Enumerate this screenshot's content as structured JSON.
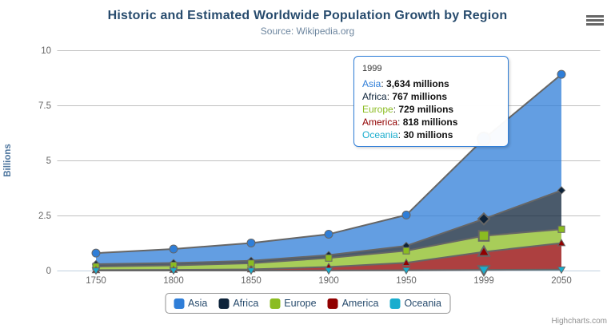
{
  "credits": "Highcharts.com",
  "theme": {
    "background": "#ffffff",
    "grid_color": "#C0C0C0",
    "axis_line_color": "#C0D0E0",
    "tick_label_color": "#666666",
    "title_color": "#274b6d",
    "subtitle_color": "#6D869F",
    "yaxis_title_color": "#4d759e",
    "legend_border_color": "#909090",
    "legend_text_color": "#274b6d",
    "series_outline_color": "#666666",
    "credits_color": "#909090",
    "tooltip_border_color": "#2f7ed8"
  },
  "chart_data": {
    "type": "area",
    "stacking": "normal",
    "title": "Historic and Estimated Worldwide Population Growth by Region",
    "subtitle": "Source: Wikipedia.org",
    "xlabel": "",
    "ylabel": "Billions",
    "ylim": [
      0,
      10
    ],
    "yticks": [
      0,
      2.5,
      5,
      7.5,
      10
    ],
    "grid": "horizontal",
    "legend_position": "bottom-center",
    "categories": [
      "1750",
      "1800",
      "1850",
      "1900",
      "1950",
      "1999",
      "2050"
    ],
    "values_unit": "millions",
    "hover_category": "1999",
    "series": [
      {
        "name": "Asia",
        "color": "#2f7ed8",
        "marker": "circle",
        "values": [
          502,
          635,
          809,
          947,
          1402,
          3634,
          5268
        ]
      },
      {
        "name": "Africa",
        "color": "#0d233a",
        "marker": "diamond",
        "values": [
          106,
          107,
          111,
          133,
          221,
          767,
          1766
        ]
      },
      {
        "name": "Europe",
        "color": "#8bbc21",
        "marker": "square",
        "values": [
          163,
          203,
          276,
          408,
          547,
          729,
          628
        ]
      },
      {
        "name": "America",
        "color": "#910000",
        "marker": "triangle",
        "values": [
          18,
          31,
          54,
          156,
          339,
          818,
          1201
        ]
      },
      {
        "name": "Oceania",
        "color": "#1aadce",
        "marker": "triangle-down",
        "values": [
          2,
          2,
          2,
          6,
          13,
          30,
          46
        ]
      }
    ]
  },
  "tooltip": {
    "header": "1999",
    "rows": [
      {
        "name": "Asia",
        "value": "3,634 millions",
        "color": "#2f7ed8"
      },
      {
        "name": "Africa",
        "value": "767 millions",
        "color": "#0d233a"
      },
      {
        "name": "Europe",
        "value": "729 millions",
        "color": "#8bbc21"
      },
      {
        "name": "America",
        "value": "818 millions",
        "color": "#910000"
      },
      {
        "name": "Oceania",
        "value": "30 millions",
        "color": "#1aadce"
      }
    ]
  }
}
